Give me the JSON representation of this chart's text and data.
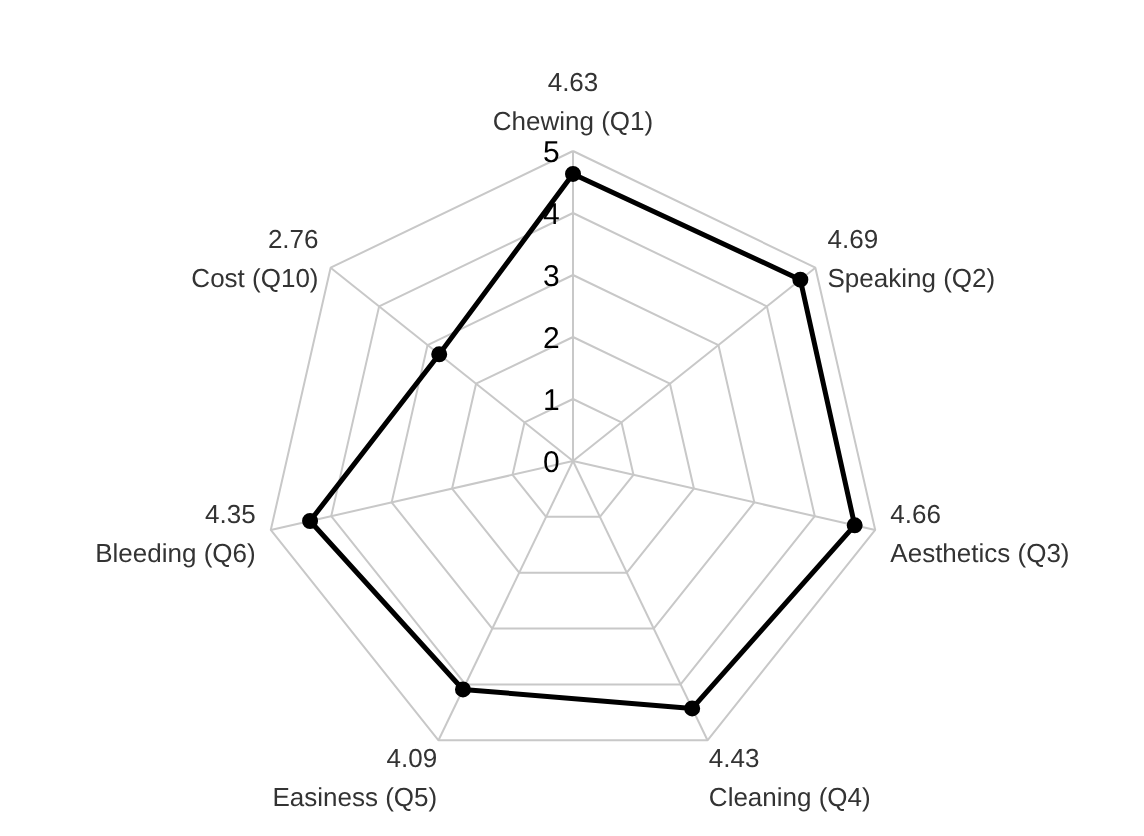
{
  "chart_data": {
    "type": "radar",
    "categories": [
      "4.63\nChewing (Q1)",
      "4.69\nSpeaking (Q2)",
      "4.66\nAesthetics (Q3)",
      "4.43\nCleaning (Q4)",
      "4.09\nEasiness (Q5)",
      "4.35\nBleeding (Q6)",
      "2.76\nCost (Q10)"
    ],
    "series": [
      {
        "color": "#000000",
        "values": [
          4.63,
          4.69,
          4.66,
          4.43,
          4.09,
          4.35,
          2.76
        ]
      }
    ],
    "ylim": [
      0,
      5
    ],
    "yticks": [
      0,
      1,
      2,
      3,
      4,
      5
    ],
    "grid": true,
    "marker": "circle"
  }
}
